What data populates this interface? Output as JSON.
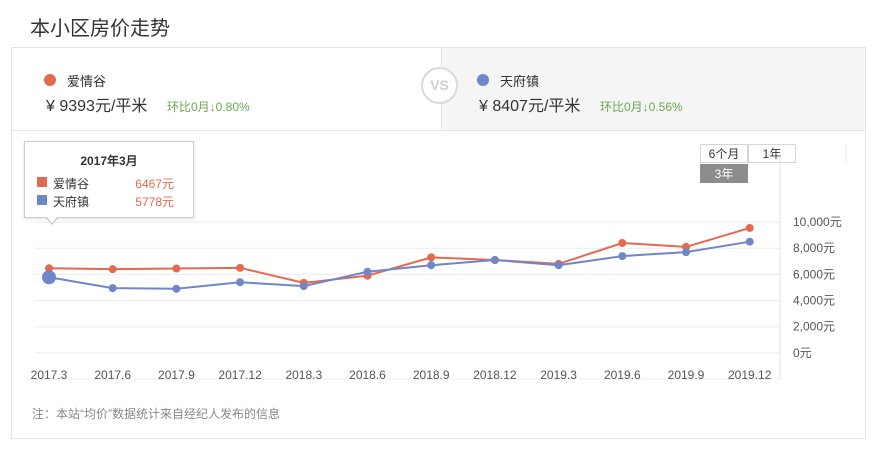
{
  "page_title": "本小区房价走势",
  "left": {
    "name": "爱情谷",
    "price": "¥ 9393元/平米",
    "change": "环比0月↓0.80%",
    "color": "#e3694f"
  },
  "vs_label": "VS",
  "right": {
    "name": "天府镇",
    "price": "¥ 8407元/平米",
    "change": "环比0月↓0.56%",
    "color": "#6f87c7"
  },
  "range_tabs": [
    {
      "label": "6个月",
      "active": false
    },
    {
      "label": "1年",
      "active": false
    },
    {
      "label": "3年",
      "active": true
    }
  ],
  "tooltip": {
    "title": "2017年3月",
    "rows": [
      {
        "name": "爱情谷",
        "value": "6467元"
      },
      {
        "name": "天府镇",
        "value": "5778元"
      }
    ]
  },
  "note": "注：本站“均价”数据统计来自经纪人发布的信息",
  "chart_data": {
    "type": "line",
    "x": [
      "2017.3",
      "2017.6",
      "2017.9",
      "2017.12",
      "2018.3",
      "2018.6",
      "2018.9",
      "2018.12",
      "2019.3",
      "2019.6",
      "2019.9",
      "2019.12"
    ],
    "y_ticks": [
      "10,000元",
      "8,000元",
      "6,000元",
      "4,000元",
      "2,000元",
      "0元"
    ],
    "ylim": [
      -2000,
      11000
    ],
    "grid": true,
    "series": [
      {
        "name": "爱情谷",
        "color": "#e3694f",
        "values": [
          6467,
          6400,
          6450,
          6500,
          5350,
          5900,
          7300,
          7100,
          6800,
          8400,
          8100,
          9550
        ]
      },
      {
        "name": "天府镇",
        "color": "#6f87c7",
        "values": [
          5778,
          4950,
          4900,
          5400,
          5100,
          6200,
          6700,
          7100,
          6700,
          7400,
          7700,
          8500
        ]
      }
    ],
    "highlight_index": 0
  }
}
